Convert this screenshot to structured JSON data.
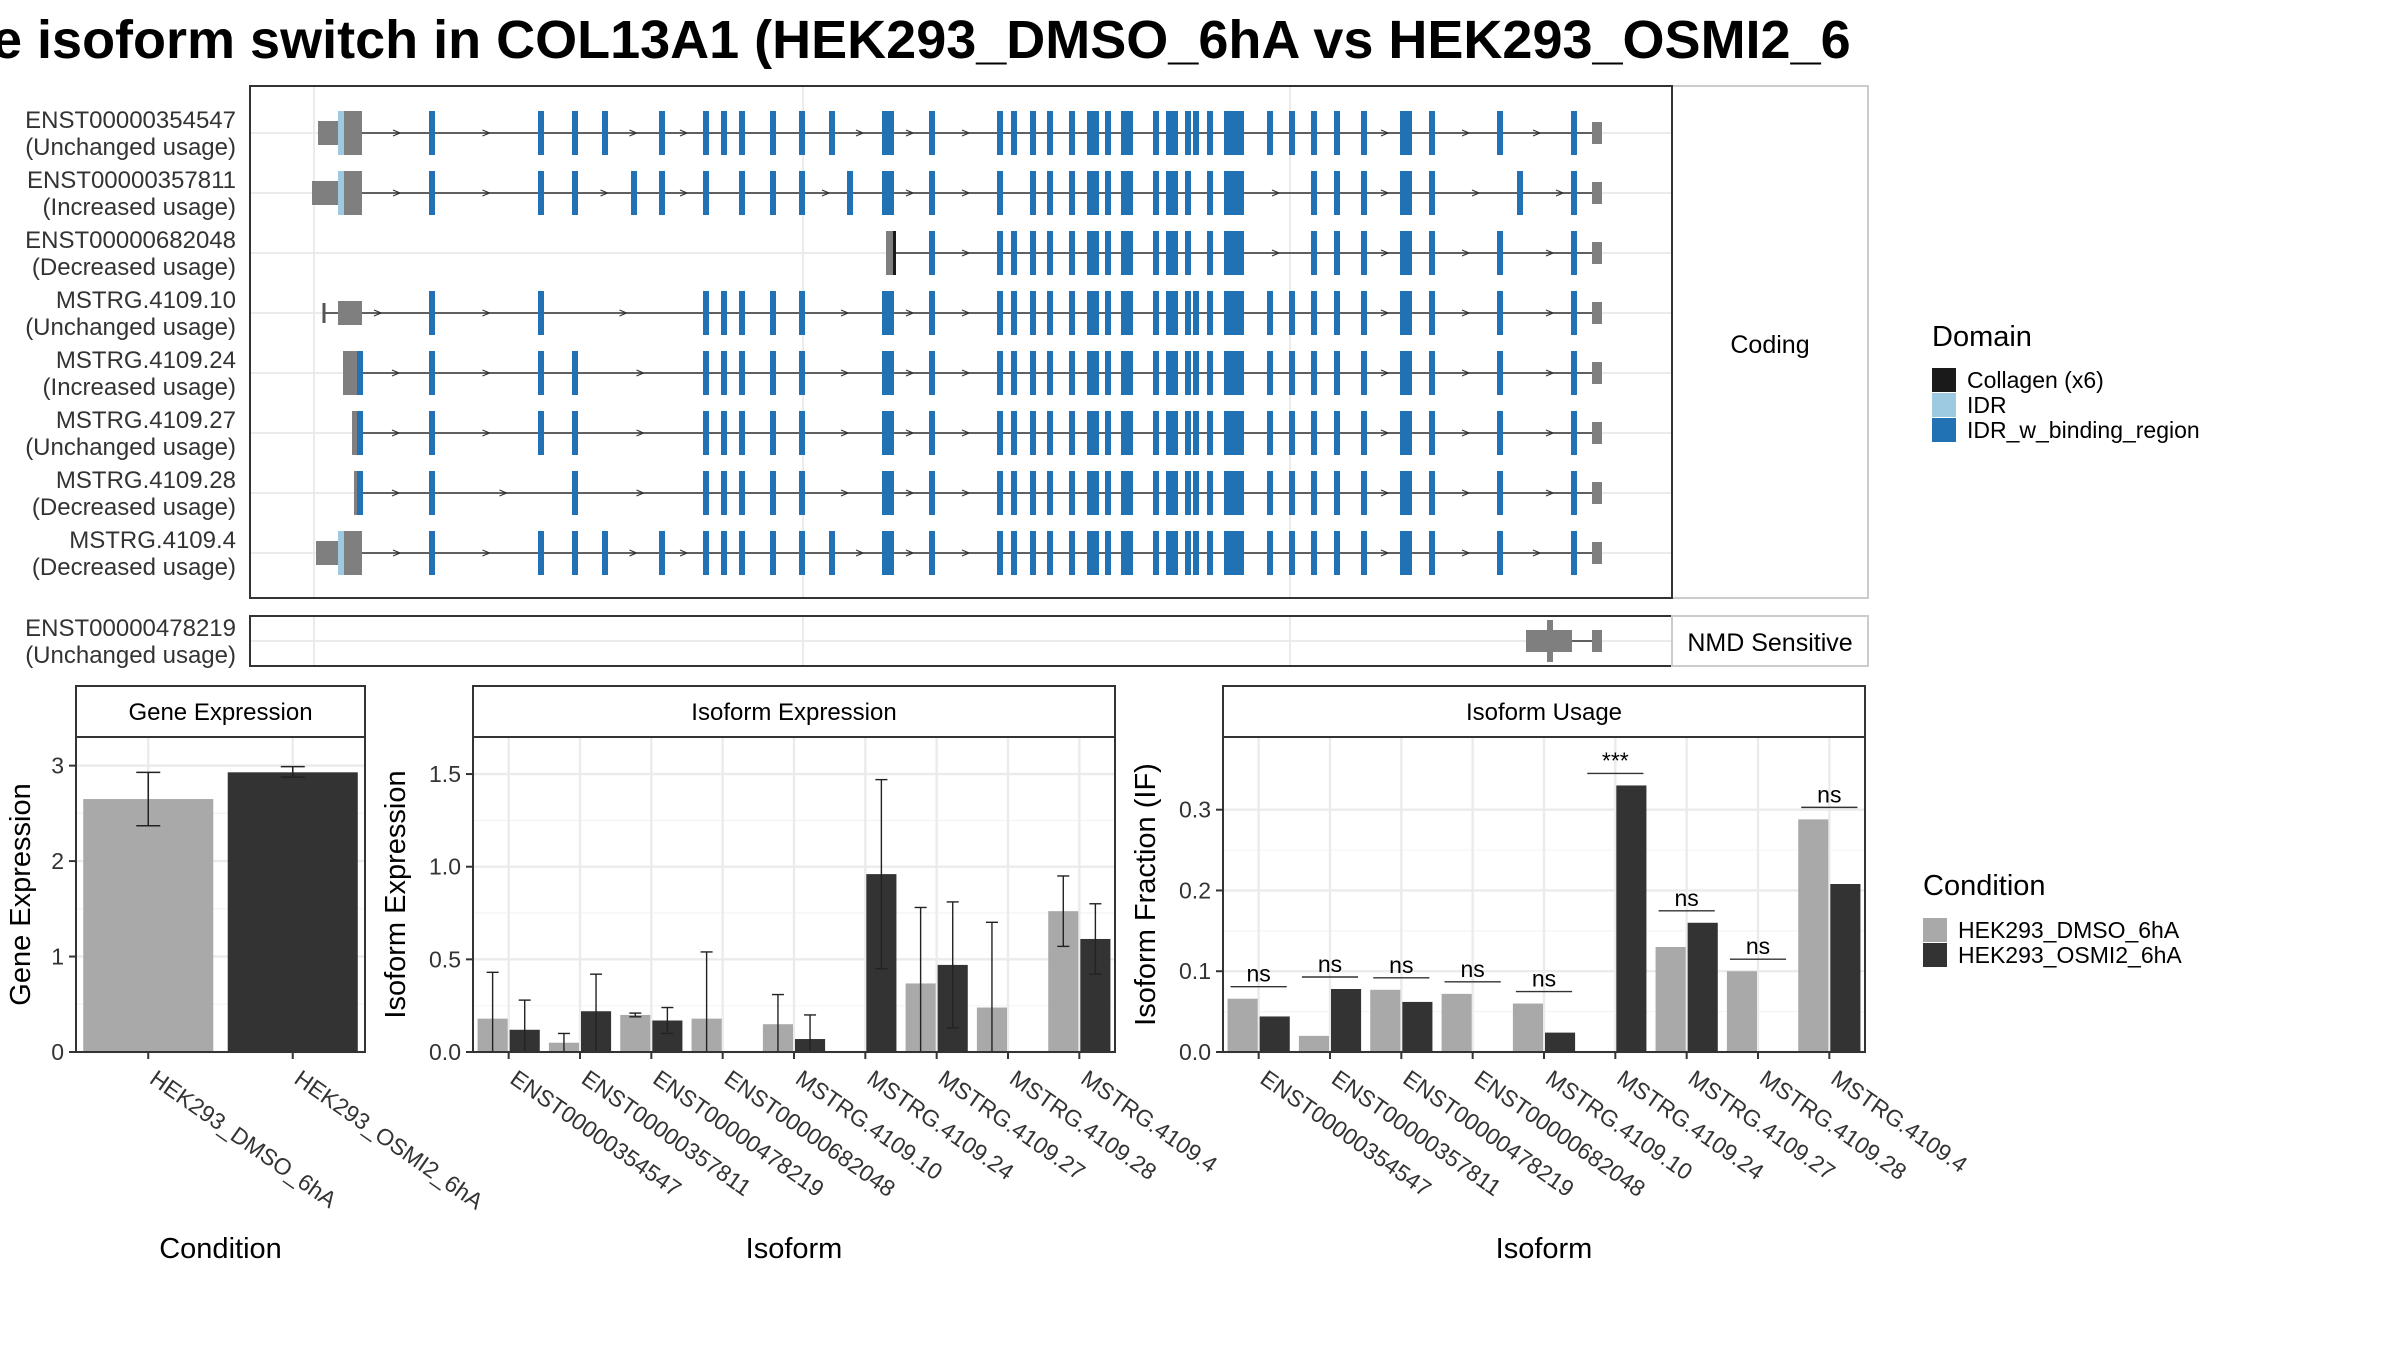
{
  "title": "e isoform switch in COL13A1 (HEK293_DMSO_6hA vs HEK293_OSMI2_6",
  "colors": {
    "collagen": "#1a1a1a",
    "idr": "#9ecae1",
    "idr_binding": "#2171b5",
    "utr": "#7f7f7f",
    "dmso": "#a9a9a9",
    "osmi2": "#333333",
    "grid": "#ebebeb",
    "panel_border": "#333333"
  },
  "structure": {
    "coding_label": "Coding",
    "nmd_label": "NMD Sensitive",
    "coding_transcripts": [
      {
        "id": "ENST00000354547",
        "usage": "(Unchanged usage)"
      },
      {
        "id": "ENST00000357811",
        "usage": "(Increased usage)"
      },
      {
        "id": "ENST00000682048",
        "usage": "(Decreased usage)"
      },
      {
        "id": "MSTRG.4109.10",
        "usage": "(Unchanged usage)"
      },
      {
        "id": "MSTRG.4109.24",
        "usage": "(Increased usage)"
      },
      {
        "id": "MSTRG.4109.27",
        "usage": "(Unchanged usage)"
      },
      {
        "id": "MSTRG.4109.28",
        "usage": "(Decreased usage)"
      },
      {
        "id": "MSTRG.4109.4",
        "usage": "(Decreased usage)"
      }
    ],
    "nmd_transcripts": [
      {
        "id": "ENST00000478219",
        "usage": "(Unchanged usage)"
      }
    ]
  },
  "legend_domain": {
    "title": "Domain",
    "items": [
      {
        "label": "Collagen (x6)",
        "color": "#1a1a1a"
      },
      {
        "label": "IDR",
        "color": "#9ecae1"
      },
      {
        "label": "IDR_w_binding_region",
        "color": "#2171b5"
      }
    ]
  },
  "legend_condition": {
    "title": "Condition",
    "items": [
      {
        "label": "HEK293_DMSO_6hA",
        "color": "#a9a9a9"
      },
      {
        "label": "HEK293_OSMI2_6hA",
        "color": "#333333"
      }
    ]
  },
  "chart_data": [
    {
      "type": "bar",
      "title": "Gene Expression",
      "xlabel": "Condition",
      "ylabel": "Gene Expression",
      "ylim": [
        0,
        3.3
      ],
      "yticks": [
        0,
        1,
        2,
        3
      ],
      "categories": [
        "HEK293_DMSO_6hA",
        "HEK293_OSMI2_6hA"
      ],
      "values": [
        2.65,
        2.93
      ],
      "errors": [
        [
          2.37,
          2.93
        ],
        [
          2.88,
          2.99
        ]
      ]
    },
    {
      "type": "bar",
      "title": "Isoform Expression",
      "xlabel": "Isoform",
      "ylabel": "Isoform Expression",
      "ylim": [
        0,
        1.7
      ],
      "yticks": [
        0.0,
        0.5,
        1.0,
        1.5
      ],
      "categories": [
        "ENST00000354547",
        "ENST00000357811",
        "ENST00000478219",
        "ENST00000682048",
        "MSTRG.4109.10",
        "MSTRG.4109.24",
        "MSTRG.4109.27",
        "MSTRG.4109.28",
        "MSTRG.4109.4"
      ],
      "series": [
        {
          "name": "HEK293_DMSO_6hA",
          "values": [
            0.18,
            0.05,
            0.2,
            0.18,
            0.15,
            0.0,
            0.37,
            0.24,
            0.76
          ],
          "errors": [
            [
              0.0,
              0.43
            ],
            [
              0.0,
              0.1
            ],
            [
              0.19,
              0.21
            ],
            [
              0.0,
              0.54
            ],
            [
              0.0,
              0.31
            ],
            null,
            [
              0.0,
              0.78
            ],
            [
              0.0,
              0.7
            ],
            [
              0.57,
              0.95
            ]
          ]
        },
        {
          "name": "HEK293_OSMI2_6hA",
          "values": [
            0.12,
            0.22,
            0.17,
            0.0,
            0.07,
            0.96,
            0.47,
            0.0,
            0.61
          ],
          "errors": [
            [
              0.0,
              0.28
            ],
            [
              0.0,
              0.42
            ],
            [
              0.1,
              0.24
            ],
            null,
            [
              0.0,
              0.2
            ],
            [
              0.45,
              1.47
            ],
            [
              0.13,
              0.81
            ],
            null,
            [
              0.42,
              0.8
            ]
          ]
        }
      ]
    },
    {
      "type": "bar",
      "title": "Isoform Usage",
      "xlabel": "Isoform",
      "ylabel": "Isoform Fraction (IF)",
      "ylim": [
        0,
        0.39
      ],
      "yticks": [
        0.0,
        0.1,
        0.2,
        0.3
      ],
      "categories": [
        "ENST00000354547",
        "ENST00000357811",
        "ENST00000478219",
        "ENST00000682048",
        "MSTRG.4109.10",
        "MSTRG.4109.24",
        "MSTRG.4109.27",
        "MSTRG.4109.28",
        "MSTRG.4109.4"
      ],
      "series": [
        {
          "name": "HEK293_DMSO_6hA",
          "values": [
            0.066,
            0.02,
            0.077,
            0.072,
            0.06,
            0.0,
            0.13,
            0.1,
            0.288
          ]
        },
        {
          "name": "HEK293_OSMI2_6hA",
          "values": [
            0.044,
            0.078,
            0.062,
            0.0,
            0.024,
            0.33,
            0.16,
            0.0,
            0.208
          ]
        }
      ],
      "significance": [
        "ns",
        "ns",
        "ns",
        "ns",
        "ns",
        "***",
        "ns",
        "ns",
        "ns"
      ]
    }
  ]
}
